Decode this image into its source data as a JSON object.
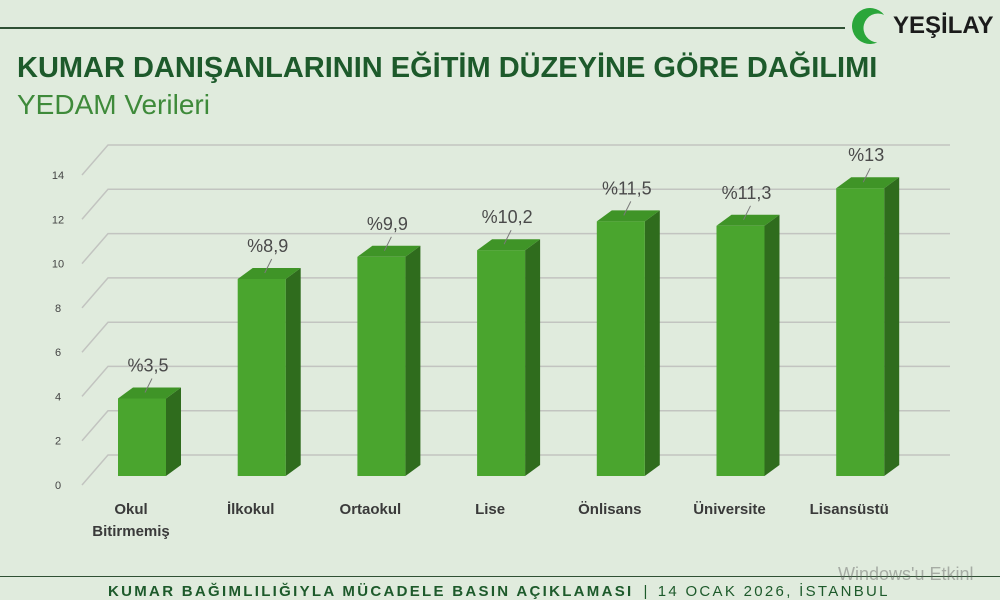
{
  "colors": {
    "background": "#e0ebdd",
    "title": "#1d5a2b",
    "subtitle": "#3e8a3a",
    "rule": "#2f5034",
    "grid": "#c2c4c0",
    "tick_label": "#444444",
    "data_label": "#4a4a4a",
    "category_label": "#3a3a3a",
    "leader": "#7a7a7a"
  },
  "logo": {
    "text": "YEŞİLAY",
    "icon": "crescent-icon",
    "icon_color": "#2aa63a"
  },
  "chart_data": {
    "type": "bar",
    "three_d": true,
    "title": "KUMAR DANIŞANLARININ EĞİTİM DÜZEYİNE GÖRE DAĞILIMI",
    "subtitle": "YEDAM Verileri",
    "categories": [
      "Okul Bitirmemiş",
      "İlkokul",
      "Ortaokul",
      "Lise",
      "Önlisans",
      "Üniversite",
      "Lisansüstü"
    ],
    "values": [
      3.5,
      8.9,
      9.9,
      10.2,
      11.5,
      11.3,
      13
    ],
    "data_labels": [
      "%3,5",
      "%8,9",
      "%9,9",
      "%10,2",
      "%11,5",
      "%11,3",
      "%13"
    ],
    "ylim": [
      0,
      14
    ],
    "yticks": [
      0,
      2,
      4,
      6,
      8,
      10,
      12,
      14
    ],
    "grid": true,
    "bar_colors": {
      "front": "#4aa52e",
      "top": "#3f9427",
      "side": "#2f6c1d"
    }
  },
  "footer": {
    "campaign": "KUMAR BAĞIMLILIĞIYLA MÜCADELE BASIN AÇIKLAMASI",
    "separator": "|",
    "date_place": "14 OCAK 2026, İSTANBUL"
  },
  "watermark": {
    "text": "Windows'u Etkinl"
  }
}
